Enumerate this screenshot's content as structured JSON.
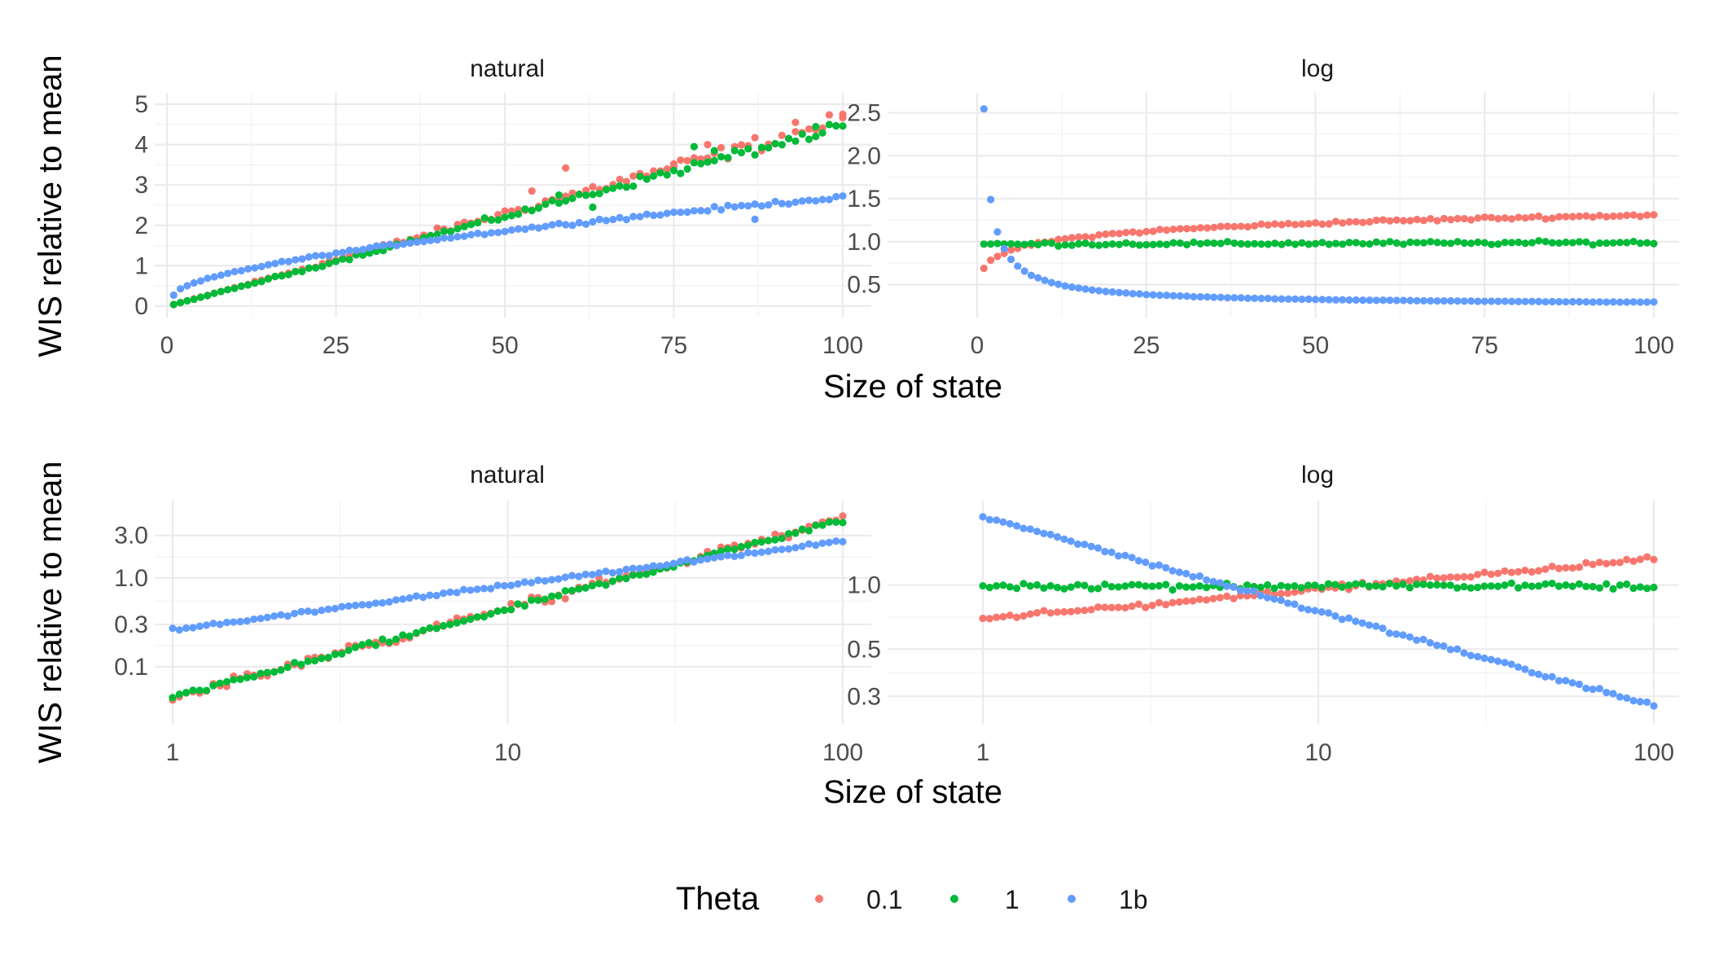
{
  "legend": {
    "title": "Theta",
    "items": [
      {
        "label": "0.1",
        "color": "#F8766D"
      },
      {
        "label": "1",
        "color": "#00BA38"
      },
      {
        "label": "1b",
        "color": "#619CFF"
      }
    ]
  },
  "rows": [
    {
      "xlabel": "Size of state",
      "ylabel": "WIS relative to mean"
    },
    {
      "xlabel": "Size of state",
      "ylabel": "WIS relative to mean"
    }
  ],
  "chart_data": [
    {
      "type": "scatter",
      "title": "natural",
      "x_scale": "linear",
      "y_scale": "linear",
      "xlim": [
        1,
        100
      ],
      "ylim": [
        0,
        5
      ],
      "xticks": [
        0,
        25,
        50,
        75,
        100
      ],
      "xtick_labels": [
        "0",
        "25",
        "50",
        "75",
        "100"
      ],
      "yticks": [
        0,
        1,
        2,
        3,
        4,
        5
      ],
      "ytick_labels": [
        "0",
        "1",
        "2",
        "3",
        "4",
        "5"
      ],
      "grid": true,
      "series": [
        {
          "name": "0.1",
          "color": "#F8766D",
          "x_range": [
            1,
            100
          ],
          "y_start": 0.04,
          "y_end": 4.6,
          "shape": "linear",
          "noise": 0.07,
          "scatter": [
            [
              59,
              3.42
            ],
            [
              75,
              3.45
            ],
            [
              93,
              4.55
            ],
            [
              100,
              4.75
            ],
            [
              54,
              2.85
            ],
            [
              80,
              4.0
            ]
          ]
        },
        {
          "name": "1",
          "color": "#00BA38",
          "x_range": [
            1,
            100
          ],
          "y_start": 0.04,
          "y_end": 4.45,
          "shape": "linear",
          "noise": 0.05,
          "scatter": [
            [
              58,
              2.75
            ],
            [
              78,
              3.95
            ],
            [
              96,
              4.2
            ],
            [
              63,
              2.45
            ],
            [
              81,
              3.85
            ]
          ]
        },
        {
          "name": "1b",
          "color": "#619CFF",
          "x_range": [
            1,
            100
          ],
          "y_start": 0.27,
          "y_end": 2.7,
          "shape": "sqrt",
          "noise": 0.03,
          "scatter": [
            [
              87,
              2.15
            ]
          ]
        }
      ]
    },
    {
      "type": "scatter",
      "title": "log",
      "x_scale": "linear",
      "y_scale": "linear",
      "xlim": [
        1,
        100
      ],
      "ylim": [
        0.25,
        2.6
      ],
      "xticks": [
        0,
        25,
        50,
        75,
        100
      ],
      "xtick_labels": [
        "0",
        "25",
        "50",
        "75",
        "100"
      ],
      "yticks": [
        0.5,
        1.0,
        1.5,
        2.0,
        2.5
      ],
      "ytick_labels": [
        "0.5",
        "1.0",
        "1.5",
        "2.0",
        "2.5"
      ],
      "grid": true,
      "series": [
        {
          "name": "0.1",
          "color": "#F8766D",
          "x_range": [
            1,
            100
          ],
          "y_start": 0.68,
          "y_end": 1.31,
          "shape": "log",
          "noise": 0.02,
          "scatter": []
        },
        {
          "name": "1",
          "color": "#00BA38",
          "x_range": [
            1,
            100
          ],
          "y_start": 0.97,
          "y_end": 0.99,
          "shape": "flat",
          "noise": 0.03,
          "scatter": []
        },
        {
          "name": "1b",
          "color": "#619CFF",
          "x_range": [
            1,
            100
          ],
          "y_start": 2.55,
          "y_end": 0.26,
          "shape": "power",
          "noise": 0.01,
          "scatter": []
        }
      ]
    },
    {
      "type": "scatter",
      "title": "natural",
      "x_scale": "log",
      "y_scale": "log",
      "xlim": [
        1,
        100
      ],
      "ylim": [
        0.03,
        5.5
      ],
      "xticks": [
        1,
        10,
        100
      ],
      "xtick_labels": [
        "1",
        "10",
        "100"
      ],
      "yticks": [
        0.1,
        0.3,
        1.0,
        3.0
      ],
      "ytick_labels": [
        "0.1",
        "0.3",
        "1.0",
        "3.0"
      ],
      "grid": true,
      "series": [
        {
          "name": "0.1",
          "color": "#F8766D",
          "x_range": [
            1,
            100
          ],
          "y_start": 0.045,
          "y_end": 4.6,
          "shape": "powerlaw",
          "noise": 0.09,
          "scatter": []
        },
        {
          "name": "1",
          "color": "#00BA38",
          "x_range": [
            1,
            100
          ],
          "y_start": 0.045,
          "y_end": 4.45,
          "shape": "powerlaw",
          "noise": 0.05,
          "scatter": []
        },
        {
          "name": "1b",
          "color": "#619CFF",
          "x_range": [
            1,
            100
          ],
          "y_start": 0.26,
          "y_end": 2.6,
          "shape": "powerlaw",
          "noise": 0.03,
          "scatter": []
        }
      ]
    },
    {
      "type": "scatter",
      "title": "log",
      "x_scale": "log",
      "y_scale": "log",
      "xlim": [
        1,
        100
      ],
      "ylim": [
        0.25,
        2.2
      ],
      "xticks": [
        1,
        10,
        100
      ],
      "xtick_labels": [
        "1",
        "10",
        "100"
      ],
      "yticks": [
        0.3,
        0.5,
        1.0
      ],
      "ytick_labels": [
        "0.3",
        "0.5",
        "1.0"
      ],
      "grid": true,
      "series": [
        {
          "name": "0.1",
          "color": "#F8766D",
          "x_range": [
            1,
            100
          ],
          "y_start": 0.69,
          "y_end": 1.33,
          "shape": "powerlaw",
          "noise": 0.02,
          "scatter": []
        },
        {
          "name": "1",
          "color": "#00BA38",
          "x_range": [
            1,
            100
          ],
          "y_start": 0.99,
          "y_end": 0.99,
          "shape": "powerlaw",
          "noise": 0.025,
          "scatter": []
        },
        {
          "name": "1b",
          "color": "#619CFF",
          "x_range": [
            1,
            100
          ],
          "y_start": 2.1,
          "y_end": 0.27,
          "shape": "powerlaw",
          "noise": 0.015,
          "scatter": []
        }
      ]
    }
  ]
}
